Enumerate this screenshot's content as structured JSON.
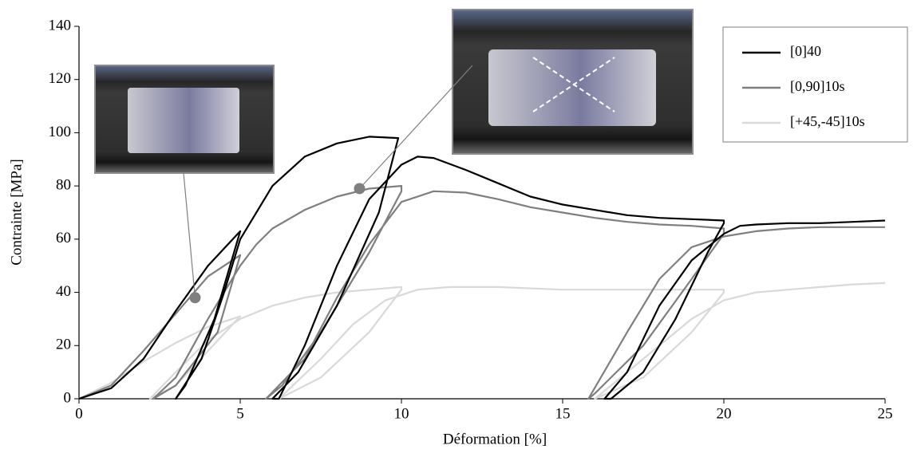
{
  "chart_data": {
    "type": "line",
    "x_label": "Déformation [%]",
    "y_label": "Contrainte [MPa]",
    "xlim": [
      0,
      25
    ],
    "xticks": [
      0,
      5,
      10,
      15,
      20,
      25
    ],
    "ylim": [
      0,
      140
    ],
    "yticks": [
      0,
      20,
      40,
      60,
      80,
      100,
      120,
      140
    ],
    "legend": "top-right",
    "series": [
      {
        "name": "[0]40",
        "color": "#000000",
        "x": [
          0,
          1,
          2,
          3,
          4,
          5,
          4.2,
          3.3,
          3,
          3.8,
          4.5,
          5,
          6,
          7,
          8,
          9,
          9.9,
          9.3,
          8,
          6.8,
          6,
          6.2,
          7,
          8,
          9,
          10,
          10.5,
          11,
          12,
          13,
          14,
          15,
          16,
          17,
          18,
          19,
          20,
          20,
          19.5,
          18.5,
          17.5,
          16.5,
          16.3,
          17,
          18,
          19,
          20,
          20.5,
          21,
          22,
          23,
          24,
          25
        ],
        "values": [
          0,
          4,
          15,
          33,
          50,
          63,
          30,
          5,
          0,
          15,
          40,
          60,
          80,
          91,
          96,
          98.5,
          98,
          70,
          35,
          10,
          0,
          0,
          20,
          50,
          75,
          88,
          91,
          90.5,
          86,
          81,
          76,
          73,
          71,
          69,
          68,
          67.5,
          67,
          66,
          55,
          30,
          10,
          0,
          0,
          10,
          35,
          52,
          62,
          65,
          65.5,
          66,
          66,
          66.5,
          67
        ]
      },
      {
        "name": "[0,90]10s",
        "color": "#7f7f7f",
        "x": [
          0,
          1,
          2,
          3,
          4,
          5,
          4.3,
          3,
          2.3,
          3,
          4,
          5,
          5.5,
          6,
          7,
          8,
          9,
          10,
          10,
          9,
          7.5,
          6.3,
          5.8,
          7,
          8,
          9,
          10,
          11,
          12,
          13,
          14,
          15,
          16,
          17,
          18,
          19,
          20,
          20,
          19,
          17.5,
          16,
          15.8,
          17,
          18,
          19,
          20,
          21,
          22,
          23,
          25
        ],
        "values": [
          0,
          5,
          18,
          32,
          46,
          54,
          25,
          5,
          0,
          8,
          30,
          50,
          58,
          64,
          71,
          76,
          79,
          80,
          78,
          55,
          25,
          5,
          0,
          15,
          38,
          58,
          74,
          78,
          77.5,
          75,
          72,
          70,
          68,
          66.5,
          65.5,
          65,
          64,
          62,
          45,
          20,
          2,
          0,
          25,
          45,
          57,
          61,
          63,
          64,
          64.5,
          64.5
        ]
      },
      {
        "name": "[+45,-45]10s",
        "color": "#d9d9d9",
        "x": [
          0,
          1,
          2,
          3,
          4,
          5,
          4,
          3,
          2.2,
          3,
          4,
          5,
          6,
          7,
          8,
          9,
          10,
          10,
          9,
          7.5,
          6.2,
          7.5,
          8.5,
          9.5,
          10.5,
          11.5,
          13,
          15,
          17,
          19,
          20,
          20,
          19,
          17.5,
          16,
          17.5,
          19,
          20,
          21,
          22,
          23,
          24,
          25
        ],
        "values": [
          0,
          6,
          14,
          21,
          27,
          31,
          18,
          5,
          0,
          10,
          22,
          30,
          35,
          38,
          40,
          41,
          42,
          41,
          25,
          8,
          0,
          15,
          28,
          37,
          41,
          42,
          42,
          41,
          41,
          41,
          41,
          40,
          25,
          8,
          0,
          15,
          30,
          37,
          40,
          41,
          42,
          43,
          43.5
        ]
      }
    ],
    "highlight_points": {
      "x": [
        3.6,
        8.7
      ],
      "y": [
        38,
        79
      ]
    }
  }
}
